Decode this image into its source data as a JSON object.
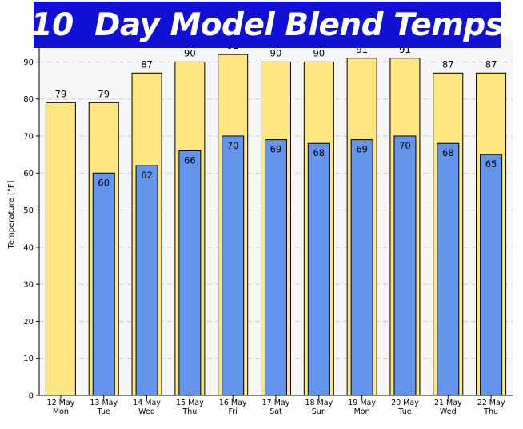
{
  "chart_data": {
    "type": "bar",
    "title": "10  Day Model Blend Temps",
    "xlabel": "",
    "ylabel": "Temperature [°F]",
    "ylim": [
      0,
      97
    ],
    "yticks": [
      0,
      10,
      20,
      30,
      40,
      50,
      60,
      70,
      80,
      90
    ],
    "grid": true,
    "categories": [
      [
        "12 May",
        "Mon"
      ],
      [
        "13 May",
        "Tue"
      ],
      [
        "14 May",
        "Wed"
      ],
      [
        "15 May",
        "Thu"
      ],
      [
        "16 May",
        "Fri"
      ],
      [
        "17 May",
        "Sat"
      ],
      [
        "18 May",
        "Sun"
      ],
      [
        "19 May",
        "Mon"
      ],
      [
        "20 May",
        "Tue"
      ],
      [
        "21 May",
        "Wed"
      ],
      [
        "22 May",
        "Thu"
      ]
    ],
    "series": [
      {
        "values": [
          79,
          79,
          87,
          90,
          92,
          90,
          90,
          91,
          91,
          87,
          87
        ],
        "color": "#ffe680"
      },
      {
        "values": [
          null,
          60,
          62,
          66,
          70,
          69,
          68,
          69,
          70,
          68,
          65
        ],
        "color": "#6495ed"
      }
    ],
    "colors": {
      "plot_background": "#f6f6f6",
      "grid": "#cccccc",
      "title_banner": "#1111d6"
    }
  }
}
